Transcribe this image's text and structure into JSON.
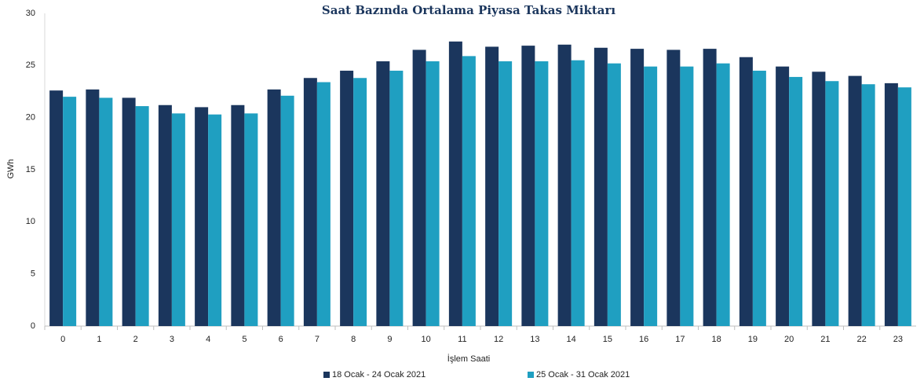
{
  "chart_data": {
    "type": "bar",
    "title": "Saat Bazında Ortalama Piyasa Takas Miktarı",
    "y_label": "GWh",
    "x_label": "İşlem Saati",
    "categories": [
      "0",
      "1",
      "2",
      "3",
      "4",
      "5",
      "6",
      "7",
      "8",
      "9",
      "10",
      "11",
      "12",
      "13",
      "14",
      "15",
      "16",
      "17",
      "18",
      "19",
      "20",
      "21",
      "22",
      "23"
    ],
    "series": [
      {
        "name": "18 Ocak - 24 Ocak 2021",
        "color": "#1b365d",
        "values": [
          22.6,
          22.7,
          21.9,
          21.2,
          21.0,
          21.2,
          22.7,
          23.8,
          24.5,
          25.4,
          26.5,
          27.3,
          26.8,
          26.9,
          27.0,
          26.7,
          26.6,
          26.5,
          26.6,
          25.8,
          24.9,
          24.4,
          24.0,
          23.3
        ]
      },
      {
        "name": "25 Ocak - 31 Ocak 2021",
        "color": "#1f9fc1",
        "values": [
          22.0,
          21.9,
          21.1,
          20.4,
          20.3,
          20.4,
          22.1,
          23.4,
          23.8,
          24.5,
          25.4,
          25.9,
          25.4,
          25.4,
          25.5,
          25.2,
          24.9,
          24.9,
          25.2,
          24.5,
          23.9,
          23.5,
          23.2,
          22.9
        ]
      }
    ],
    "ylim": [
      0,
      30
    ],
    "yticks": [
      0,
      5,
      10,
      15,
      20,
      25,
      30
    ],
    "grid": false,
    "legend": "bottom"
  }
}
